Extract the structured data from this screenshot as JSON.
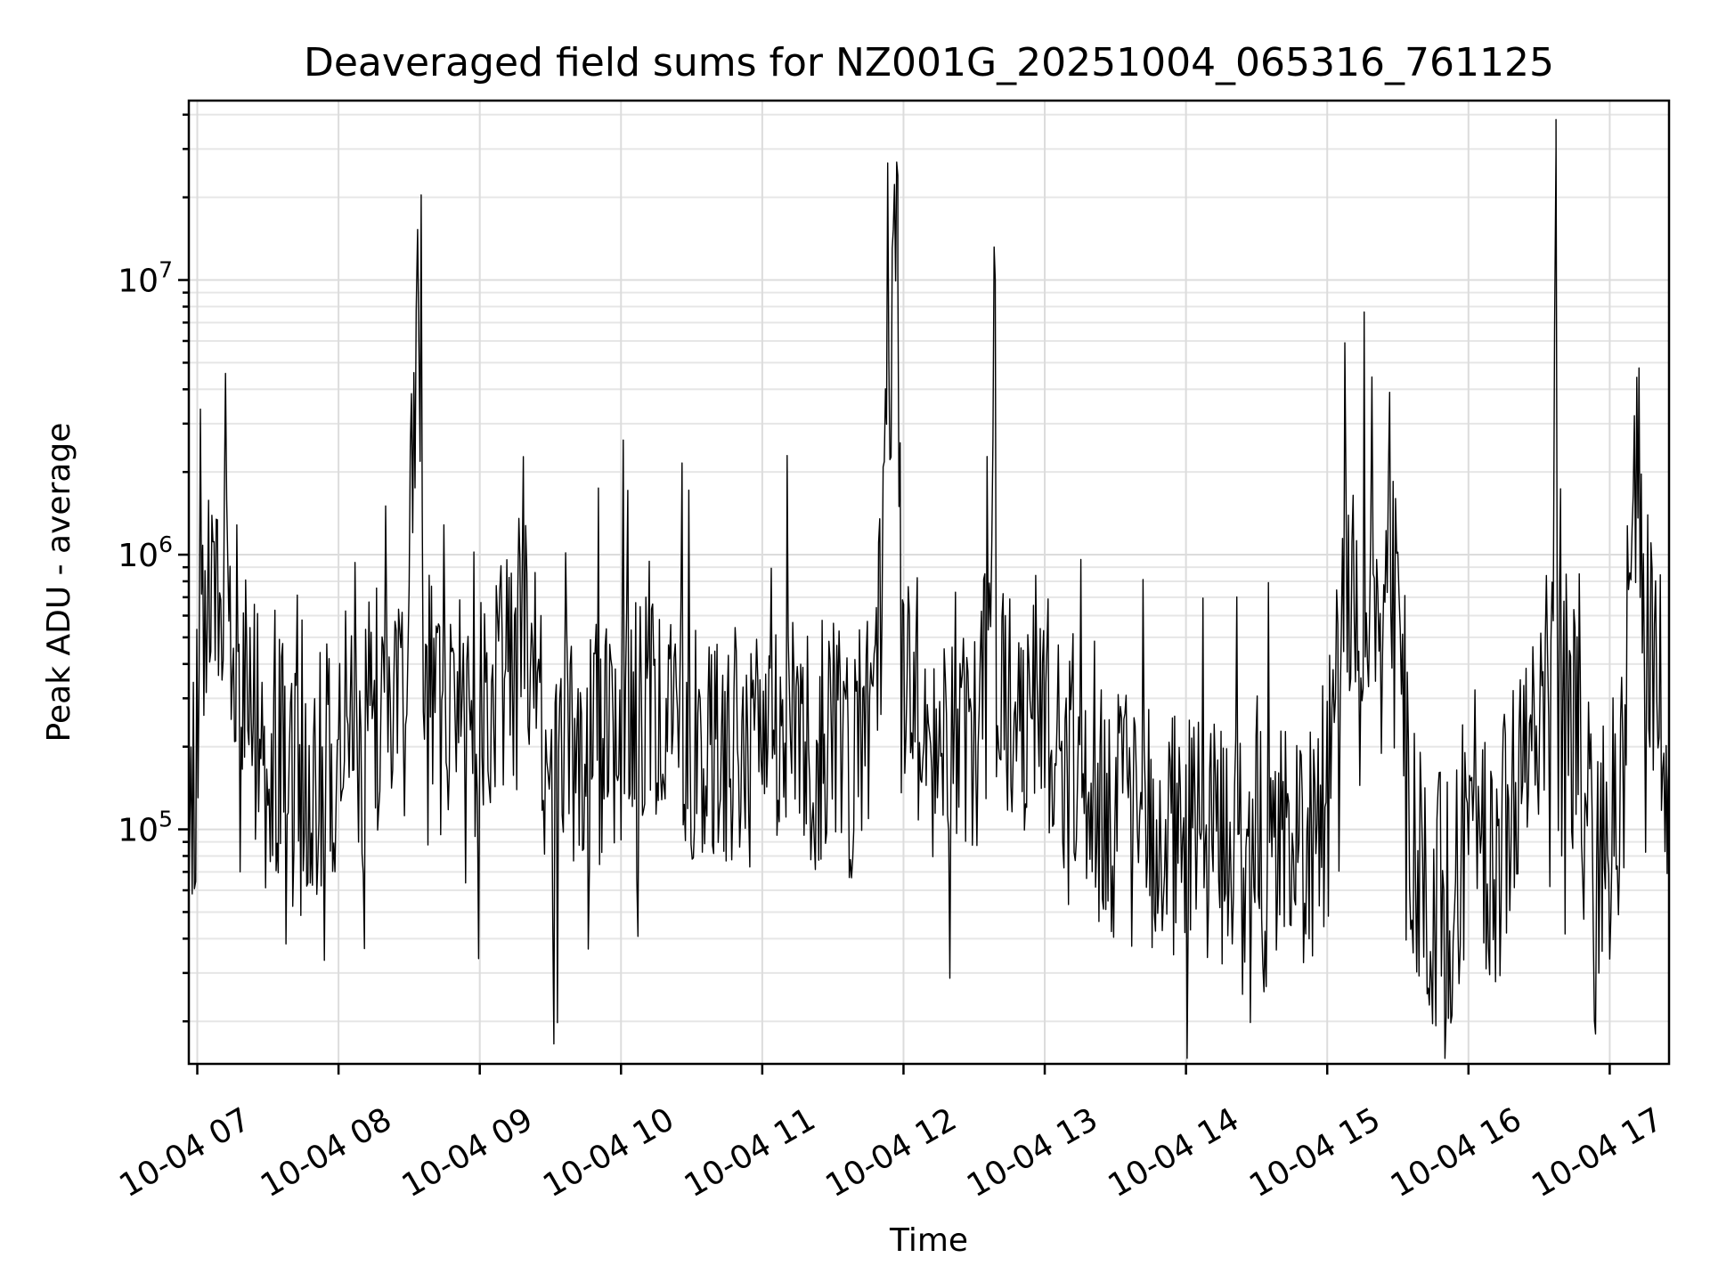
{
  "chart_data": {
    "type": "line",
    "title": "Deaveraged field sums for NZ001G_20251004_065316_761125",
    "xlabel": "Time",
    "ylabel": "Peak ADU - average",
    "yscale": "log",
    "ylim": [
      14000,
      45000000
    ],
    "xlim_hours": [
      6.94,
      17.42
    ],
    "x_ticks": [
      {
        "hour": 7,
        "label": "10-04 07"
      },
      {
        "hour": 8,
        "label": "10-04 08"
      },
      {
        "hour": 9,
        "label": "10-04 09"
      },
      {
        "hour": 10,
        "label": "10-04 10"
      },
      {
        "hour": 11,
        "label": "10-04 11"
      },
      {
        "hour": 12,
        "label": "10-04 12"
      },
      {
        "hour": 13,
        "label": "10-04 13"
      },
      {
        "hour": 14,
        "label": "10-04 14"
      },
      {
        "hour": 15,
        "label": "10-04 15"
      },
      {
        "hour": 16,
        "label": "10-04 16"
      },
      {
        "hour": 17,
        "label": "10-04 17"
      }
    ],
    "y_ticks": [
      {
        "value": 100000,
        "base": "10",
        "exp": "5"
      },
      {
        "value": 1000000,
        "base": "10",
        "exp": "6"
      },
      {
        "value": 10000000,
        "base": "10",
        "exp": "7"
      }
    ],
    "grid": true,
    "line_color": "#000000",
    "series": [
      {
        "name": "Peak ADU - average",
        "x_hours": [
          6.9,
          6.98,
          7.03,
          7.08,
          7.15,
          7.2,
          7.28,
          7.35,
          7.45,
          7.55,
          7.62,
          7.7,
          7.8,
          7.9,
          8.0,
          8.1,
          8.2,
          8.3,
          8.4,
          8.5,
          8.55,
          8.57,
          8.6,
          8.7,
          8.8,
          8.9,
          9.0,
          9.1,
          9.2,
          9.3,
          9.4,
          9.5,
          9.6,
          9.8,
          10.0,
          10.2,
          10.4,
          10.6,
          10.8,
          11.0,
          11.2,
          11.4,
          11.6,
          11.8,
          11.96,
          12.05,
          12.2,
          12.4,
          12.6,
          12.65,
          12.8,
          13.0,
          13.2,
          13.4,
          13.6,
          13.8,
          14.0,
          14.2,
          14.4,
          14.6,
          14.8,
          15.0,
          15.1,
          15.2,
          15.3,
          15.4,
          15.5,
          15.6,
          15.7,
          15.8,
          15.9,
          16.0,
          16.1,
          16.2,
          16.3,
          16.4,
          16.6,
          16.62,
          16.7,
          16.8,
          16.9,
          17.0,
          17.1,
          17.15,
          17.2,
          17.3,
          17.35,
          17.4,
          17.42
        ],
        "y_values": [
          200000,
          110000,
          500000,
          800000,
          750000,
          700000,
          500000,
          300000,
          200000,
          150000,
          200000,
          120000,
          150000,
          180000,
          200000,
          220000,
          250000,
          300000,
          400000,
          700000,
          6000000,
          10000000,
          400000,
          250000,
          200000,
          180000,
          220000,
          300000,
          500000,
          900000,
          350000,
          120000,
          150000,
          180000,
          250000,
          350000,
          250000,
          200000,
          180000,
          250000,
          300000,
          200000,
          180000,
          200000,
          24000000,
          400000,
          150000,
          200000,
          300000,
          10000000,
          250000,
          300000,
          180000,
          120000,
          110000,
          100000,
          95000,
          85000,
          80000,
          75000,
          80000,
          120000,
          500000,
          900000,
          800000,
          1000000,
          700000,
          80000,
          60000,
          55000,
          60000,
          120000,
          80000,
          70000,
          150000,
          250000,
          350000,
          30000000,
          300000,
          150000,
          80000,
          100000,
          200000,
          2000000,
          800000,
          400000,
          500000,
          100000,
          180000
        ]
      }
    ]
  }
}
